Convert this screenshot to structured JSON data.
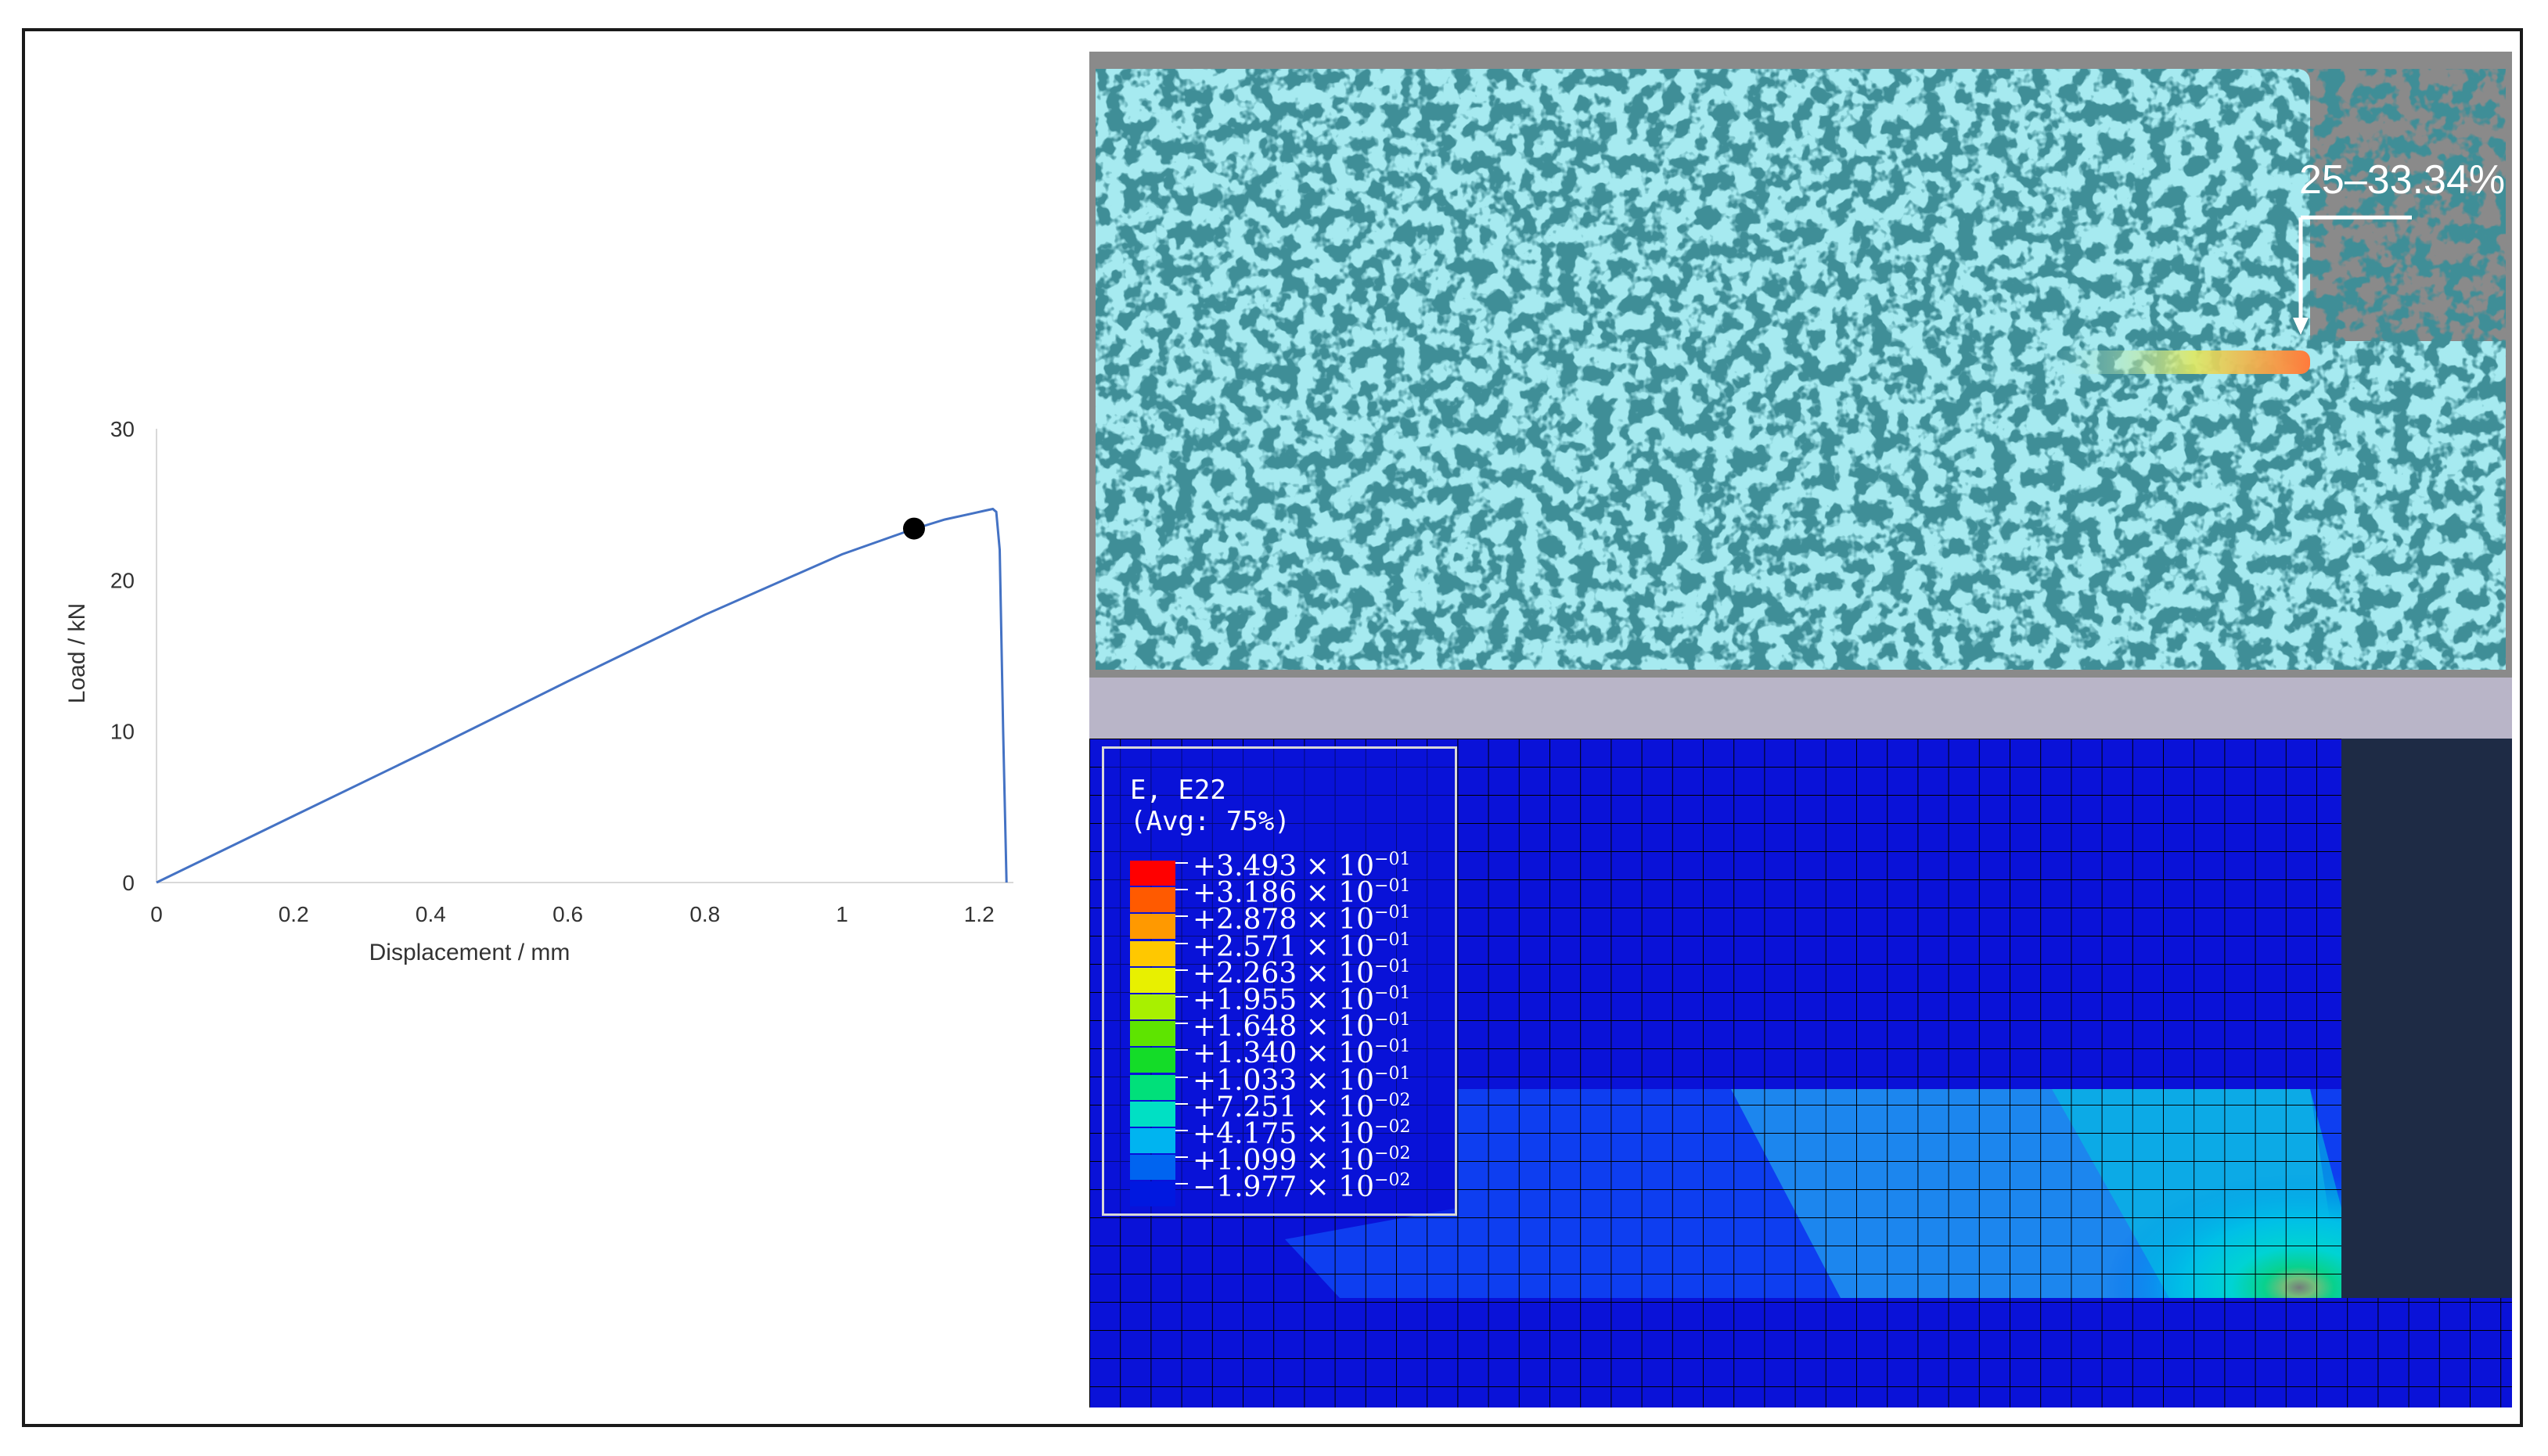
{
  "chart_data": {
    "type": "line",
    "xlabel": "Displacement / mm",
    "ylabel": "Load / kN",
    "xlim": [
      0,
      1.25
    ],
    "ylim": [
      0,
      30
    ],
    "xticks": [
      "0",
      "0.2",
      "0.4",
      "0.6",
      "0.8",
      "1",
      "1.2"
    ],
    "yticks": [
      "0",
      "10",
      "20",
      "30"
    ],
    "grid": false,
    "series": [
      {
        "color": "#4472c4",
        "x": [
          0,
          0.2,
          0.4,
          0.6,
          0.8,
          1.0,
          1.1,
          1.15,
          1.19,
          1.21,
          1.22,
          1.225,
          1.23,
          1.235,
          1.24
        ],
        "y": [
          0,
          4.4,
          8.8,
          13.3,
          17.7,
          21.7,
          23.3,
          24.0,
          24.4,
          24.6,
          24.7,
          24.5,
          22.0,
          10.0,
          0
        ]
      }
    ],
    "marker": {
      "x": 1.105,
      "y": 23.4,
      "color": "#000000"
    }
  },
  "dic_image": {
    "annotation": "25–33.34%",
    "speckle_color": "#a6eaf0",
    "dark_color": "#0c4650"
  },
  "fea_legend": {
    "title_line1": "E, E22",
    "title_line2": "(Avg: 75%)",
    "entries": [
      {
        "mantissa": "+3.493 × 10",
        "exp": "−01",
        "color": "#ff0000"
      },
      {
        "mantissa": "+3.186 × 10",
        "exp": "−01",
        "color": "#ff5a00"
      },
      {
        "mantissa": "+2.878 × 10",
        "exp": "−01",
        "color": "#ff9900"
      },
      {
        "mantissa": "+2.571 × 10",
        "exp": "−01",
        "color": "#ffc800"
      },
      {
        "mantissa": "+2.263 × 10",
        "exp": "−01",
        "color": "#e8f000"
      },
      {
        "mantissa": "+1.955 × 10",
        "exp": "−01",
        "color": "#a8f000"
      },
      {
        "mantissa": "+1.648 × 10",
        "exp": "−01",
        "color": "#5ee400"
      },
      {
        "mantissa": "+1.340 × 10",
        "exp": "−01",
        "color": "#14dc28"
      },
      {
        "mantissa": "+1.033 × 10",
        "exp": "−01",
        "color": "#00e07a"
      },
      {
        "mantissa": "+7.251 × 10",
        "exp": "−02",
        "color": "#00e0c4"
      },
      {
        "mantissa": "+4.175 × 10",
        "exp": "−02",
        "color": "#00b4f0"
      },
      {
        "mantissa": "+1.099 × 10",
        "exp": "−02",
        "color": "#0064f0"
      },
      {
        "mantissa": "−1.977 × 10",
        "exp": "−02",
        "color": "#0018e0"
      }
    ]
  }
}
